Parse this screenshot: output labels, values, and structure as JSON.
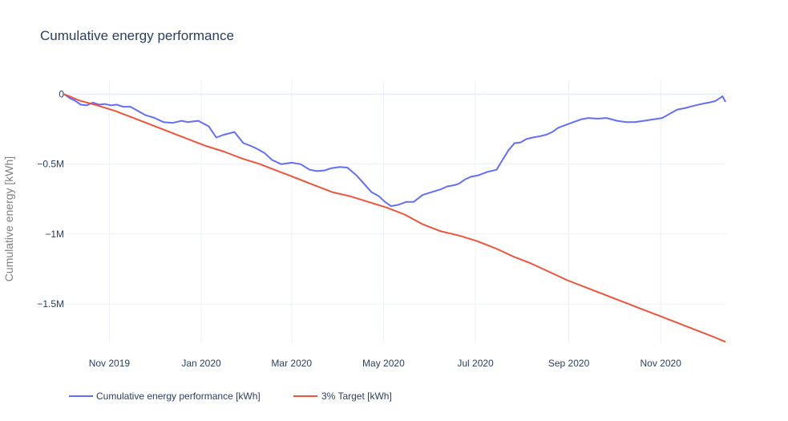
{
  "chart_data": {
    "type": "line",
    "title": "Cumulative energy performance",
    "xlabel": "",
    "ylabel": "Cumulative energy  [kWh]",
    "x_tick_labels": [
      "Nov 2019",
      "Jan 2020",
      "Mar 2020",
      "May 2020",
      "Jul 2020",
      "Sep 2020",
      "Nov 2020"
    ],
    "x_tick_dates": [
      "2019-11-01",
      "2020-01-01",
      "2020-03-01",
      "2020-05-01",
      "2020-07-01",
      "2020-09-01",
      "2020-11-01"
    ],
    "y_tick_labels": [
      "0",
      "−0.5M",
      "−1M",
      "−1.5M"
    ],
    "y_tick_values": [
      0,
      -500000,
      -1000000,
      -1500000
    ],
    "xlim": [
      "2019-10-02",
      "2020-12-14"
    ],
    "ylim": [
      -1780000,
      100000
    ],
    "grid": true,
    "legend_position": "bottom-left",
    "series": [
      {
        "name": "Cumulative energy performance [kWh]",
        "color": "#636efa",
        "x": [
          "2019-10-02",
          "2019-10-06",
          "2019-10-09",
          "2019-10-13",
          "2019-10-17",
          "2019-10-21",
          "2019-10-25",
          "2019-10-29",
          "2019-11-02",
          "2019-11-06",
          "2019-11-10",
          "2019-11-15",
          "2019-11-20",
          "2019-11-25",
          "2019-12-01",
          "2019-12-07",
          "2019-12-13",
          "2019-12-19",
          "2019-12-23",
          "2019-12-30",
          "2020-01-06",
          "2020-01-11",
          "2020-01-16",
          "2020-01-23",
          "2020-01-29",
          "2020-02-03",
          "2020-02-07",
          "2020-02-12",
          "2020-02-17",
          "2020-02-23",
          "2020-03-01",
          "2020-03-07",
          "2020-03-13",
          "2020-03-18",
          "2020-03-23",
          "2020-03-27",
          "2020-04-02",
          "2020-04-07",
          "2020-04-13",
          "2020-04-18",
          "2020-04-23",
          "2020-04-28",
          "2020-05-02",
          "2020-05-06",
          "2020-05-11",
          "2020-05-16",
          "2020-05-21",
          "2020-05-27",
          "2020-06-02",
          "2020-06-08",
          "2020-06-12",
          "2020-06-17",
          "2020-06-20",
          "2020-06-24",
          "2020-06-28",
          "2020-07-03",
          "2020-07-09",
          "2020-07-15",
          "2020-07-19",
          "2020-07-23",
          "2020-07-27",
          "2020-07-31",
          "2020-08-04",
          "2020-08-08",
          "2020-08-13",
          "2020-08-17",
          "2020-08-21",
          "2020-08-25",
          "2020-08-30",
          "2020-09-04",
          "2020-09-09",
          "2020-09-14",
          "2020-09-20",
          "2020-09-26",
          "2020-10-03",
          "2020-10-09",
          "2020-10-15",
          "2020-10-21",
          "2020-10-27",
          "2020-11-02",
          "2020-11-07",
          "2020-11-12",
          "2020-11-17",
          "2020-11-22",
          "2020-11-28",
          "2020-12-03",
          "2020-12-07",
          "2020-12-10",
          "2020-12-12",
          "2020-12-14"
        ],
        "y": [
          0,
          -30000,
          -45000,
          -75000,
          -80000,
          -60000,
          -75000,
          -70000,
          -80000,
          -75000,
          -90000,
          -90000,
          -120000,
          -150000,
          -170000,
          -200000,
          -205000,
          -190000,
          -200000,
          -190000,
          -230000,
          -310000,
          -290000,
          -270000,
          -350000,
          -370000,
          -390000,
          -420000,
          -470000,
          -500000,
          -490000,
          -500000,
          -540000,
          -550000,
          -545000,
          -530000,
          -520000,
          -525000,
          -580000,
          -640000,
          -700000,
          -730000,
          -770000,
          -800000,
          -790000,
          -770000,
          -770000,
          -720000,
          -700000,
          -680000,
          -660000,
          -650000,
          -640000,
          -610000,
          -590000,
          -580000,
          -555000,
          -540000,
          -470000,
          -400000,
          -350000,
          -345000,
          -320000,
          -310000,
          -300000,
          -290000,
          -270000,
          -240000,
          -220000,
          -200000,
          -180000,
          -170000,
          -175000,
          -170000,
          -190000,
          -200000,
          -200000,
          -190000,
          -180000,
          -170000,
          -140000,
          -110000,
          -100000,
          -85000,
          -70000,
          -60000,
          -50000,
          -30000,
          -15000,
          -55000
        ]
      },
      {
        "name": "3% Target [kWh]",
        "color": "#ef553b",
        "x": [
          "2019-10-02",
          "2019-10-12",
          "2019-10-24",
          "2019-11-05",
          "2019-11-17",
          "2019-11-29",
          "2019-12-11",
          "2019-12-23",
          "2020-01-04",
          "2020-01-16",
          "2020-01-28",
          "2020-02-09",
          "2020-02-21",
          "2020-03-04",
          "2020-03-16",
          "2020-03-28",
          "2020-04-09",
          "2020-04-21",
          "2020-05-03",
          "2020-05-15",
          "2020-05-27",
          "2020-06-08",
          "2020-06-20",
          "2020-07-02",
          "2020-07-14",
          "2020-07-26",
          "2020-08-07",
          "2020-08-19",
          "2020-08-31",
          "2020-09-12",
          "2020-09-24",
          "2020-10-06",
          "2020-10-18",
          "2020-10-30",
          "2020-11-11",
          "2020-11-23",
          "2020-12-05",
          "2020-12-14"
        ],
        "y": [
          0,
          -45000,
          -80000,
          -120000,
          -170000,
          -220000,
          -270000,
          -320000,
          -370000,
          -410000,
          -460000,
          -500000,
          -550000,
          -600000,
          -650000,
          -700000,
          -730000,
          -770000,
          -810000,
          -860000,
          -930000,
          -980000,
          -1010000,
          -1050000,
          -1100000,
          -1160000,
          -1210000,
          -1270000,
          -1330000,
          -1380000,
          -1430000,
          -1480000,
          -1530000,
          -1580000,
          -1630000,
          -1680000,
          -1730000,
          -1770000
        ]
      }
    ]
  }
}
